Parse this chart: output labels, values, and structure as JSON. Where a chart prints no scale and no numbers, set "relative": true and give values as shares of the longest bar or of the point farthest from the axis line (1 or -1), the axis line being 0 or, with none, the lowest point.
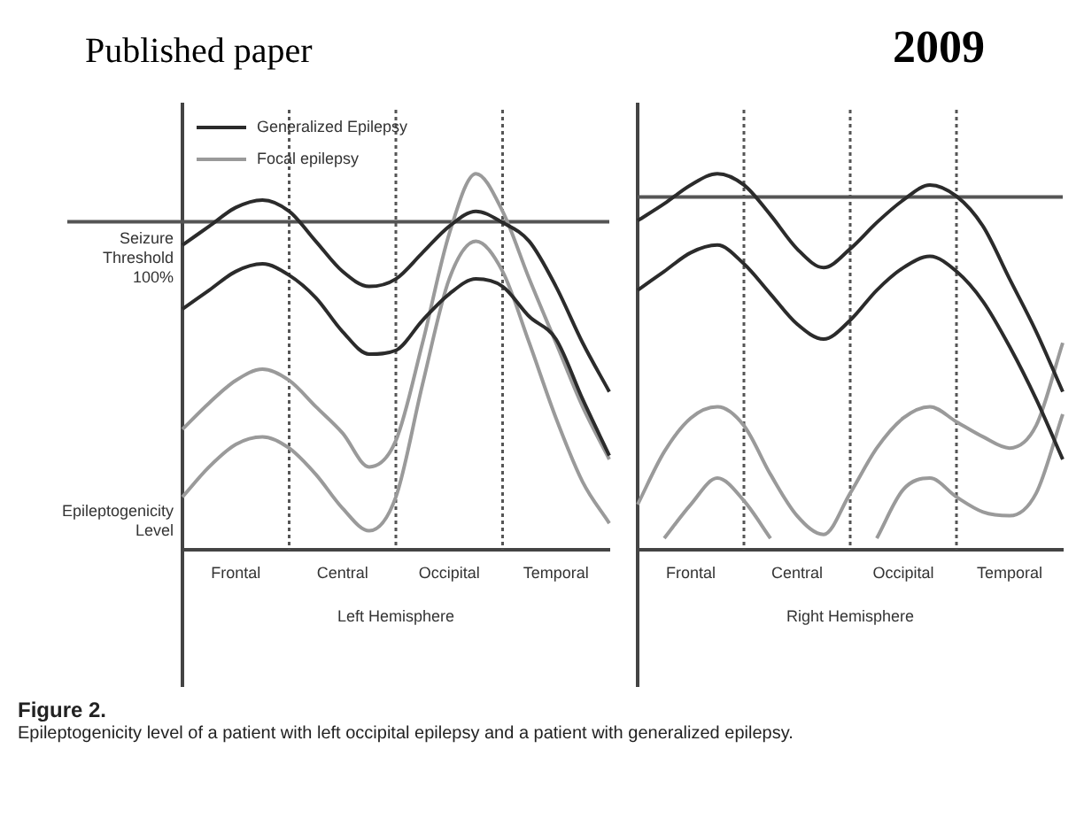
{
  "chart_data": [
    {
      "type": "line",
      "title": "Published paper",
      "xlabel": "Left Hemisphere",
      "ylabel": "Epileptogenicity Level",
      "relative": true,
      "marker": "none",
      "grid": "x",
      "legend": "top left",
      "categories": [
        null,
        null,
        "Frontal",
        null,
        null,
        null,
        "Central",
        null,
        null,
        null,
        "Occipital",
        null,
        null,
        null,
        "Temporal",
        null,
        null
      ],
      "series": [
        {
          "name": "Generalized Epilepsy",
          "color": "#2b2b2b",
          "values": [
            0.81,
            0.86,
            0.91,
            0.93,
            0.9,
            0.82,
            0.74,
            0.7,
            0.72,
            0.79,
            0.86,
            0.9,
            0.87,
            0.82,
            0.7,
            0.55,
            0.42
          ]
        },
        {
          "color": "#2b2b2b",
          "values": [
            0.64,
            0.69,
            0.74,
            0.76,
            0.73,
            0.67,
            0.58,
            0.52,
            0.53,
            0.61,
            0.68,
            0.72,
            0.7,
            0.62,
            0.56,
            0.4,
            0.25
          ]
        },
        {
          "name": "Focal epilepsy",
          "color": "#9a9a9a",
          "values": [
            0.32,
            0.39,
            0.45,
            0.48,
            0.45,
            0.38,
            0.31,
            0.22,
            0.29,
            0.55,
            0.84,
            1,
            0.9,
            0.72,
            0.55,
            0.38,
            0.24
          ]
        },
        {
          "color": "#9a9a9a",
          "values": [
            0.14,
            0.22,
            0.28,
            0.3,
            0.27,
            0.2,
            0.11,
            0.05,
            0.14,
            0.44,
            0.72,
            0.82,
            0.74,
            0.55,
            0.35,
            0.18,
            0.07
          ]
        }
      ],
      "ref_lines": [
        {
          "axis": "y",
          "value": 0.872,
          "label": "Seizure Threshold 100%",
          "color": "#555555",
          "line_style": "solid"
        }
      ],
      "annotations": [
        "Figure 2.",
        "Epileptogenicity level of a patient with left occipital epilepsy and a patient with generalized epilepsy."
      ]
    },
    {
      "type": "line",
      "title": "2009",
      "xlabel": "Right Hemisphere",
      "relative": true,
      "marker": "none",
      "grid": "x",
      "categories": [
        null,
        null,
        "Frontal",
        null,
        null,
        null,
        "Central",
        null,
        null,
        null,
        "Occipital",
        null,
        null,
        null,
        "Temporal",
        null,
        null
      ],
      "series": [
        {
          "color": "#2b2b2b",
          "values": [
            0.875,
            0.92,
            0.97,
            1,
            0.97,
            0.89,
            0.8,
            0.75,
            0.8,
            0.87,
            0.93,
            0.97,
            0.94,
            0.86,
            0.72,
            0.58,
            0.42
          ]
        },
        {
          "color": "#2b2b2b",
          "values": [
            0.69,
            0.74,
            0.79,
            0.81,
            0.76,
            0.68,
            0.6,
            0.56,
            0.61,
            0.69,
            0.75,
            0.78,
            0.74,
            0.66,
            0.54,
            0.4,
            0.24
          ]
        },
        {
          "color": "#9a9a9a",
          "values": [
            0.12,
            0.26,
            0.35,
            0.38,
            0.33,
            0.2,
            0.09,
            0.04,
            0.15,
            0.27,
            0.35,
            0.38,
            0.34,
            0.3,
            0.27,
            0.33,
            0.55
          ]
        },
        {
          "color": "#9a9a9a",
          "values": [
            null,
            0.03,
            0.12,
            0.19,
            0.13,
            0.03,
            null,
            null,
            null,
            0.03,
            0.16,
            0.19,
            0.14,
            0.1,
            0.09,
            0.15,
            0.36
          ]
        }
      ],
      "ref_lines": [
        {
          "axis": "y",
          "value": 0.938,
          "color": "#555555",
          "line_style": "solid"
        }
      ]
    }
  ]
}
